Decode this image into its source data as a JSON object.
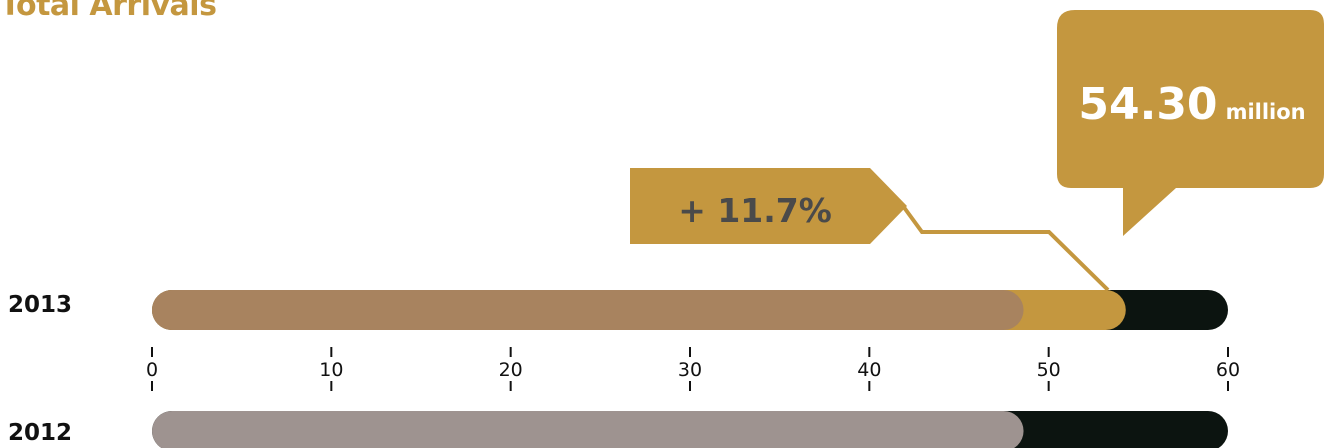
{
  "title": "Total Arrivals",
  "colors": {
    "accent": "#c4973f",
    "bar_2013": "#a8835f",
    "bar_2012": "#9e9390",
    "track": "#0c1410",
    "text_dark": "#111111"
  },
  "callout": {
    "growth": "+ 11.7%",
    "total_value": "54.30",
    "total_unit": "million"
  },
  "chart_data": {
    "type": "bar",
    "orientation": "horizontal",
    "title": "Total Arrivals",
    "categories": [
      "2013",
      "2012"
    ],
    "values": [
      54.3,
      48.6
    ],
    "base_2013": 48.6,
    "increase_2013": 5.7,
    "xlim": [
      0,
      60
    ],
    "xticks": [
      "0",
      "10",
      "20",
      "30",
      "40",
      "50",
      "60"
    ],
    "annotations": [
      "+ 11.7%",
      "54.30 million"
    ],
    "grid": false,
    "legend": "none"
  }
}
